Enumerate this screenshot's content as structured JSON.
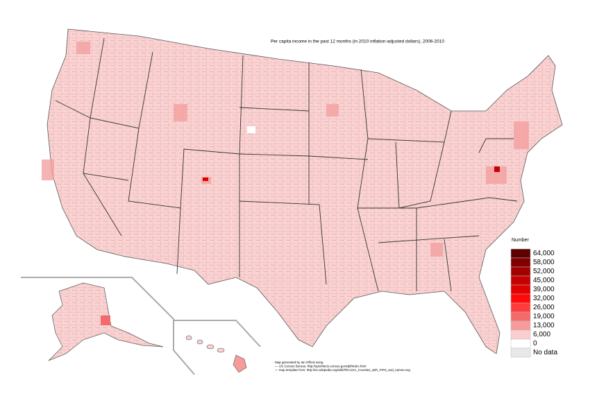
{
  "title": "Per capita income in the past 12 months (in 2010 inflation-adjusted dollars), 2006-2010",
  "legend": {
    "title": "Number",
    "items": [
      {
        "label": "64,000",
        "color": "#5c0000"
      },
      {
        "label": "58,000",
        "color": "#800000"
      },
      {
        "label": "52,000",
        "color": "#a30000"
      },
      {
        "label": "45,000",
        "color": "#c40000"
      },
      {
        "label": "39,000",
        "color": "#e00000"
      },
      {
        "label": "32,000",
        "color": "#ff0a0a"
      },
      {
        "label": "26,000",
        "color": "#ff3b3b"
      },
      {
        "label": "19,000",
        "color": "#f36a6a"
      },
      {
        "label": "13,000",
        "color": "#f79a9a"
      },
      {
        "label": "6,000",
        "color": "#fbcfcf"
      },
      {
        "label": "0",
        "color": "#ffffff"
      },
      {
        "label": "No data",
        "color": "#e8e8e8"
      }
    ]
  },
  "credits": [
    "Map generated by Ian Offord using",
    "— US Census Bureau: http://quickfacts.census.gov/qfd/index.html",
    "— map template from: http://en.wikipedia.org/wiki/File:USA_Counties_with_FIPS_and_names.svg"
  ]
}
